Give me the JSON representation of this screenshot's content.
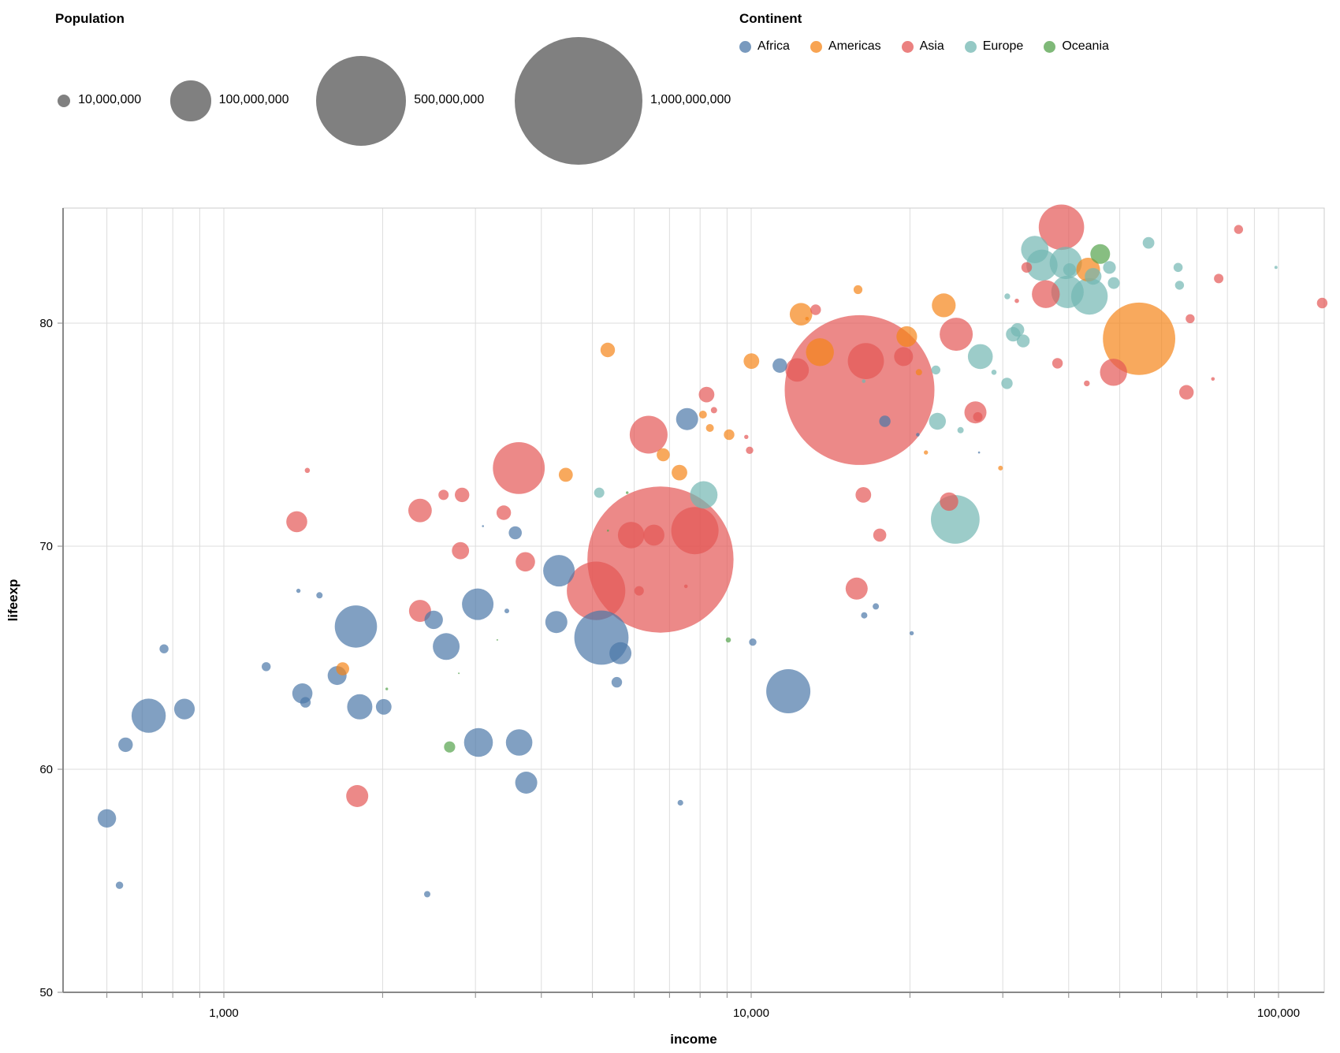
{
  "population_legend": {
    "title": "Population",
    "items": [
      {
        "label": "10,000,000",
        "value": 10000000
      },
      {
        "label": "100,000,000",
        "value": 100000000
      },
      {
        "label": "500,000,000",
        "value": 500000000
      },
      {
        "label": "1,000,000,000",
        "value": 1000000000
      }
    ],
    "symbol_color": "#808080"
  },
  "continent_legend": {
    "title": "Continent",
    "items": [
      {
        "label": "Africa",
        "color": "#4c78a8"
      },
      {
        "label": "Americas",
        "color": "#f58518"
      },
      {
        "label": "Asia",
        "color": "#e45756"
      },
      {
        "label": "Europe",
        "color": "#72b7b2"
      },
      {
        "label": "Oceania",
        "color": "#54a24b"
      }
    ]
  },
  "chart_data": {
    "type": "scatter",
    "subtype": "bubble",
    "xlabel": "income",
    "ylabel": "lifeexp",
    "x_scale": "log",
    "xlim": [
      500,
      122000
    ],
    "ylim": [
      49.8,
      85.2
    ],
    "grid": true,
    "legend_position": "top",
    "size_field": "population",
    "color_field": "continent",
    "point_opacity": 0.7,
    "grid_color": "#dddddd",
    "axis_color": "#888888",
    "x_ticks_labeled": [
      {
        "value": 1000,
        "label": "1,000"
      },
      {
        "value": 10000,
        "label": "10,000"
      },
      {
        "value": 100000,
        "label": "100,000"
      }
    ],
    "x_ticks_minor": [
      600,
      700,
      800,
      900,
      1000,
      2000,
      3000,
      4000,
      5000,
      6000,
      7000,
      8000,
      9000,
      10000,
      20000,
      30000,
      40000,
      50000,
      60000,
      70000,
      80000,
      90000,
      100000
    ],
    "y_ticks": [
      50,
      60,
      70,
      80
    ],
    "series": [
      {
        "name": "Africa",
        "color": "#4c78a8",
        "points": [
          [
            600,
            57.8,
            21000000
          ],
          [
            634,
            54.8,
            3400000
          ],
          [
            651,
            61.1,
            13000000
          ],
          [
            720,
            62.4,
            72000000
          ],
          [
            770,
            65.4,
            5000000
          ],
          [
            842,
            62.7,
            26000000
          ],
          [
            1203,
            64.6,
            5000000
          ],
          [
            1385,
            68.0,
            1100000
          ],
          [
            1409,
            63.4,
            25000000
          ],
          [
            1428,
            63.0,
            6800000
          ],
          [
            1518,
            67.8,
            2400000
          ],
          [
            1640,
            64.2,
            22000000
          ],
          [
            1780,
            66.4,
            110000000
          ],
          [
            1810,
            62.8,
            39000000
          ],
          [
            2010,
            62.8,
            15000000
          ],
          [
            2430,
            54.4,
            2400000
          ],
          [
            2500,
            66.7,
            21000000
          ],
          [
            2640,
            65.5,
            44000000
          ],
          [
            3030,
            67.4,
            61000000
          ],
          [
            3100,
            70.9,
            260000
          ],
          [
            3440,
            67.1,
            1400000
          ],
          [
            3570,
            70.6,
            10500000
          ],
          [
            3040,
            61.2,
            51000000
          ],
          [
            3630,
            61.2,
            43000000
          ],
          [
            3745,
            59.4,
            30000000
          ],
          [
            4320,
            68.9,
            61000000
          ],
          [
            4270,
            66.6,
            30000000
          ],
          [
            5200,
            65.9,
            181000000
          ],
          [
            5650,
            65.2,
            30000000
          ],
          [
            5560,
            63.9,
            6800000
          ],
          [
            7340,
            58.5,
            2000000
          ],
          [
            7560,
            75.7,
            30000000
          ],
          [
            10070,
            65.7,
            3400000
          ],
          [
            11760,
            63.5,
            120000000
          ],
          [
            11330,
            78.1,
            13000000
          ],
          [
            16380,
            66.9,
            2400000
          ],
          [
            17230,
            67.3,
            2400000
          ],
          [
            17930,
            75.6,
            8000000
          ],
          [
            20150,
            66.1,
            1100000
          ],
          [
            20700,
            75.0,
            800000
          ],
          [
            27050,
            74.2,
            260000
          ]
        ]
      },
      {
        "name": "Americas",
        "color": "#f58518",
        "points": [
          [
            1680,
            64.5,
            10500000
          ],
          [
            4450,
            73.2,
            12000000
          ],
          [
            5345,
            78.8,
            13000000
          ],
          [
            6810,
            74.1,
            10500000
          ],
          [
            7310,
            73.3,
            15000000
          ],
          [
            8100,
            75.9,
            3800000
          ],
          [
            8350,
            75.3,
            3800000
          ],
          [
            9080,
            75.0,
            6800000
          ],
          [
            10010,
            78.3,
            15000000
          ],
          [
            12430,
            80.4,
            31000000
          ],
          [
            12760,
            80.2,
            800000
          ],
          [
            13500,
            78.7,
            48000000
          ],
          [
            15940,
            81.5,
            4800000
          ],
          [
            19730,
            79.4,
            26000000
          ],
          [
            23180,
            80.8,
            35000000
          ],
          [
            21450,
            74.2,
            1100000
          ],
          [
            29700,
            73.5,
            1400000
          ],
          [
            20800,
            77.8,
            2400000
          ],
          [
            43550,
            82.4,
            35000000
          ],
          [
            54400,
            79.3,
            321000000
          ]
        ]
      },
      {
        "name": "Asia",
        "color": "#e45756",
        "points": [
          [
            1375,
            71.1,
            27000000
          ],
          [
            1440,
            73.4,
            1700000
          ],
          [
            1790,
            58.8,
            30000000
          ],
          [
            2355,
            71.6,
            34000000
          ],
          [
            2355,
            67.1,
            30000000
          ],
          [
            2610,
            72.3,
            6500000
          ],
          [
            2830,
            72.3,
            13000000
          ],
          [
            2810,
            69.8,
            18000000
          ],
          [
            3395,
            71.5,
            13000000
          ],
          [
            3730,
            69.3,
            23000000
          ],
          [
            3625,
            73.5,
            165000000
          ],
          [
            5080,
            68.0,
            210000000
          ],
          [
            5920,
            70.5,
            43000000
          ],
          [
            6540,
            70.5,
            27000000
          ],
          [
            6130,
            68.0,
            5500000
          ],
          [
            6730,
            69.4,
            1311000000
          ],
          [
            7520,
            68.2,
            800000
          ],
          [
            7820,
            70.7,
            137000000
          ],
          [
            6390,
            75.0,
            88000000
          ],
          [
            8230,
            76.8,
            15000000
          ],
          [
            8500,
            76.1,
            2400000
          ],
          [
            9790,
            74.9,
            1100000
          ],
          [
            9930,
            74.3,
            3400000
          ],
          [
            12220,
            77.9,
            34000000
          ],
          [
            13250,
            80.6,
            6800000
          ],
          [
            16500,
            78.3,
            80000000
          ],
          [
            16050,
            77.0,
            1376000000
          ],
          [
            16320,
            72.3,
            15000000
          ],
          [
            17530,
            70.5,
            10500000
          ],
          [
            15850,
            68.1,
            30000000
          ],
          [
            23720,
            72.0,
            21000000
          ],
          [
            24480,
            79.5,
            67000000
          ],
          [
            26620,
            76.0,
            30000000
          ],
          [
            26900,
            75.8,
            5500000
          ],
          [
            19450,
            78.5,
            22000000
          ],
          [
            31900,
            81.0,
            1200000
          ],
          [
            33300,
            82.5,
            6800000
          ],
          [
            36200,
            81.3,
            48000000
          ],
          [
            38750,
            84.3,
            127000000
          ],
          [
            38100,
            78.2,
            6800000
          ],
          [
            43300,
            77.3,
            2100000
          ],
          [
            48650,
            77.8,
            45000000
          ],
          [
            66900,
            76.9,
            13000000
          ],
          [
            75100,
            77.5,
            800000
          ],
          [
            68000,
            80.2,
            5000000
          ],
          [
            77000,
            82.0,
            5500000
          ],
          [
            84000,
            84.2,
            5000000
          ],
          [
            121000,
            80.9,
            6800000
          ]
        ]
      },
      {
        "name": "Europe",
        "color": "#72b7b2",
        "points": [
          [
            5150,
            72.4,
            6500000
          ],
          [
            8130,
            72.3,
            46000000
          ],
          [
            24380,
            71.2,
            146000000
          ],
          [
            27200,
            78.5,
            38000000
          ],
          [
            28870,
            77.8,
            1700000
          ],
          [
            31400,
            79.5,
            13000000
          ],
          [
            30550,
            77.3,
            8000000
          ],
          [
            22550,
            75.6,
            17500000
          ],
          [
            24950,
            75.2,
            2400000
          ],
          [
            16350,
            77.4,
            800000
          ],
          [
            22400,
            77.9,
            5000000
          ],
          [
            32000,
            79.7,
            11000000
          ],
          [
            32800,
            79.2,
            10300000
          ],
          [
            34500,
            83.3,
            46000000
          ],
          [
            35600,
            82.6,
            60000000
          ],
          [
            39500,
            82.7,
            64000000
          ],
          [
            40150,
            82.4,
            10000000
          ],
          [
            39800,
            81.4,
            65000000
          ],
          [
            43800,
            81.2,
            82000000
          ],
          [
            44500,
            82.1,
            17000000
          ],
          [
            47800,
            82.5,
            10000000
          ],
          [
            48700,
            81.8,
            8500000
          ],
          [
            56700,
            83.6,
            8300000
          ],
          [
            64500,
            82.5,
            5200000
          ],
          [
            64900,
            81.7,
            5000000
          ],
          [
            98900,
            82.5,
            600000
          ],
          [
            30600,
            81.2,
            2100000
          ]
        ]
      },
      {
        "name": "Oceania",
        "color": "#54a24b",
        "points": [
          [
            2037,
            63.6,
            440000
          ],
          [
            2680,
            61.0,
            7600000
          ],
          [
            3300,
            65.8,
            150000
          ],
          [
            2790,
            64.3,
            150000
          ],
          [
            5350,
            70.7,
            260000
          ],
          [
            5820,
            72.4,
            440000
          ],
          [
            9050,
            65.8,
            1700000
          ],
          [
            45900,
            83.1,
            24000000
          ]
        ]
      }
    ]
  }
}
